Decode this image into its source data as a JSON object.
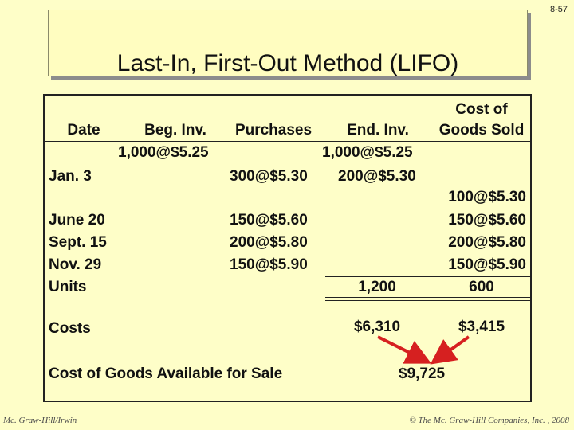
{
  "slide_number": "8-57",
  "title": "Last-In, First-Out Method (LIFO)",
  "headers": {
    "date": "Date",
    "beg_inv": "Beg. Inv.",
    "purchases": "Purchases",
    "end_inv": "End. Inv.",
    "cogs_line1": "Cost of",
    "cogs_line2": "Goods Sold"
  },
  "rows": {
    "beg": {
      "beg_inv": "1,000@$5.25",
      "end_inv": "1,000@$5.25"
    },
    "jan3": {
      "date": "Jan. 3",
      "purchases": "300@$5.30",
      "end_inv": "200@$5.30",
      "cogs": "100@$5.30"
    },
    "june20": {
      "date": "June 20",
      "purchases": "150@$5.60",
      "cogs": "150@$5.60"
    },
    "sept15": {
      "date": "Sept. 15",
      "purchases": "200@$5.80",
      "cogs": "200@$5.80"
    },
    "nov29": {
      "date": "Nov. 29",
      "purchases": "150@$5.90",
      "cogs": "150@$5.90"
    },
    "units": {
      "label": "Units",
      "end_inv": "1,200",
      "cogs": "600"
    },
    "costs": {
      "label": "Costs",
      "end_inv": "$6,310",
      "cogs": "$3,415"
    },
    "cgafs": {
      "label": "Cost of Goods Available for Sale",
      "value": "$9,725"
    }
  },
  "colors": {
    "background": "#fefec8",
    "arrow": "#d62020"
  },
  "footer": {
    "left": "Mc. Graw-Hill/Irwin",
    "right": "© The Mc. Graw-Hill Companies, Inc. , 2008"
  }
}
